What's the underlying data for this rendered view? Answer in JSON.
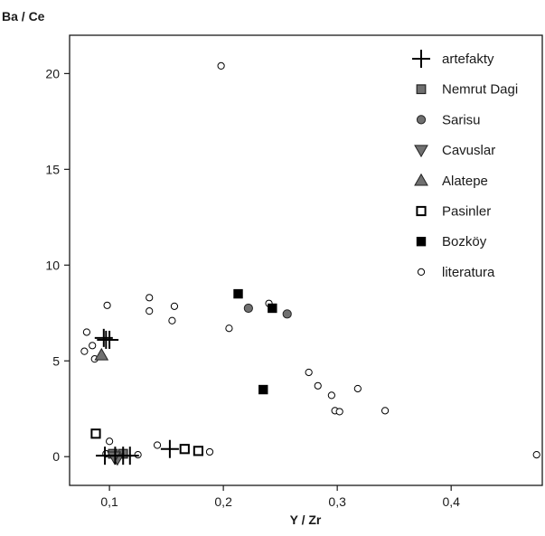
{
  "chart_data": {
    "type": "scatter",
    "title": "",
    "xlabel": "Y / Zr",
    "ylabel": "Ba / Ce",
    "xlim": [
      0.065,
      0.48
    ],
    "ylim": [
      -1.5,
      22
    ],
    "grid": false,
    "legend_position": "top-right",
    "x_ticks": [
      {
        "value": 0.1,
        "label": "0,1"
      },
      {
        "value": 0.2,
        "label": "0,2"
      },
      {
        "value": 0.3,
        "label": "0,3"
      },
      {
        "value": 0.4,
        "label": "0,4"
      }
    ],
    "y_ticks": [
      {
        "value": 0,
        "label": "0"
      },
      {
        "value": 5,
        "label": "5"
      },
      {
        "value": 10,
        "label": "10"
      },
      {
        "value": 15,
        "label": "15"
      },
      {
        "value": 20,
        "label": "20"
      }
    ],
    "series": [
      {
        "name": "literatura",
        "marker": "circle-open",
        "color": "#000000",
        "points": [
          [
            0.198,
            20.4
          ],
          [
            0.098,
            7.9
          ],
          [
            0.135,
            8.3
          ],
          [
            0.135,
            7.6
          ],
          [
            0.157,
            7.85
          ],
          [
            0.155,
            7.1
          ],
          [
            0.205,
            6.7
          ],
          [
            0.24,
            8.0
          ],
          [
            0.08,
            6.5
          ],
          [
            0.085,
            5.8
          ],
          [
            0.078,
            5.5
          ],
          [
            0.087,
            5.1
          ],
          [
            0.275,
            4.4
          ],
          [
            0.283,
            3.7
          ],
          [
            0.295,
            3.2
          ],
          [
            0.318,
            3.55
          ],
          [
            0.298,
            2.4
          ],
          [
            0.302,
            2.35
          ],
          [
            0.342,
            2.4
          ],
          [
            0.142,
            0.6
          ],
          [
            0.188,
            0.25
          ],
          [
            0.1,
            0.8
          ],
          [
            0.097,
            0.15
          ],
          [
            0.125,
            0.1
          ],
          [
            0.475,
            0.1
          ]
        ]
      },
      {
        "name": "Sarisu",
        "marker": "circle-filled",
        "color": "#707070",
        "points": [
          [
            0.222,
            7.75
          ],
          [
            0.256,
            7.45
          ]
        ]
      },
      {
        "name": "Bozköy",
        "marker": "square-filled",
        "color": "#000000",
        "points": [
          [
            0.213,
            8.5
          ],
          [
            0.243,
            7.75
          ],
          [
            0.235,
            3.5
          ]
        ]
      },
      {
        "name": "Pasinler",
        "marker": "square-open",
        "color": "#000000",
        "points": [
          [
            0.088,
            1.2
          ],
          [
            0.166,
            0.4
          ],
          [
            0.178,
            0.3
          ]
        ]
      },
      {
        "name": "Nemrut Dagi",
        "marker": "square-gray",
        "color": "#707070",
        "points": [
          [
            0.103,
            0.15
          ],
          [
            0.112,
            0.15
          ]
        ]
      },
      {
        "name": "Alatepe",
        "marker": "triangle-up",
        "color": "#707070",
        "points": [
          [
            0.093,
            5.3
          ]
        ]
      },
      {
        "name": "Cavuslar",
        "marker": "triangle-down",
        "color": "#707070",
        "points": [
          [
            0.107,
            -0.1
          ],
          [
            0.104,
            0.0
          ]
        ]
      },
      {
        "name": "artefakty",
        "marker": "plus",
        "color": "#000000",
        "points": [
          [
            0.095,
            6.2
          ],
          [
            0.097,
            6.1
          ],
          [
            0.1,
            6.1
          ],
          [
            0.096,
            0.05
          ],
          [
            0.105,
            0.05
          ],
          [
            0.112,
            0.05
          ],
          [
            0.118,
            0.05
          ],
          [
            0.153,
            0.4
          ]
        ]
      }
    ],
    "legend_order": [
      "artefakty",
      "Nemrut Dagi",
      "Sarisu",
      "Cavuslar",
      "Alatepe",
      "Pasinler",
      "Bozköy",
      "literatura"
    ]
  }
}
